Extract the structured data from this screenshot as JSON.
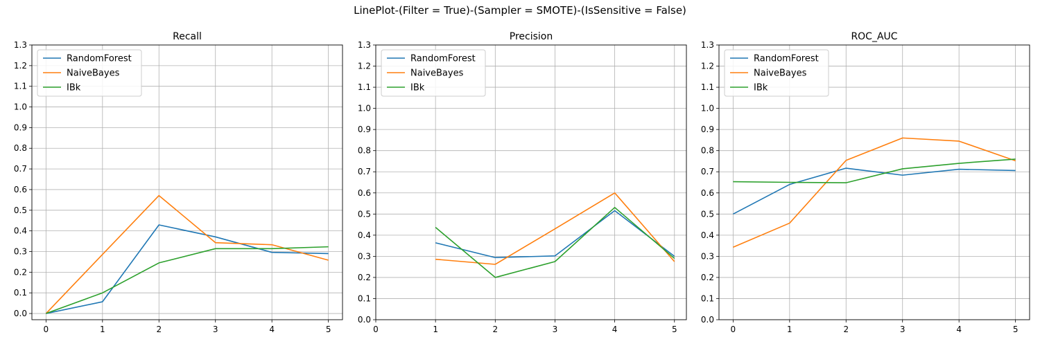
{
  "figure_title": "LinePlot-(Filter = True)-(Sampler = SMOTE)-(IsSensitive = False)",
  "colors": {
    "RandomForest": "#1f77b4",
    "NaiveBayes": "#ff7f0e",
    "IBk": "#2ca02c",
    "grid": "#b0b0b0"
  },
  "chart_data": [
    {
      "type": "line",
      "title": "Recall",
      "x": [
        0,
        1,
        2,
        3,
        4,
        5
      ],
      "xticks": [
        0,
        1,
        2,
        3,
        4,
        5
      ],
      "ylim": [
        -0.03,
        1.3
      ],
      "yticks": [
        0.0,
        0.1,
        0.2,
        0.3,
        0.4,
        0.5,
        0.6,
        0.7,
        0.8,
        0.9,
        1.0,
        1.1,
        1.2,
        1.3
      ],
      "xlim": [
        -0.25,
        5.25
      ],
      "grid": true,
      "legend": "upper-left",
      "series": [
        {
          "name": "RandomForest",
          "values": [
            0.0,
            0.057,
            0.429,
            0.371,
            0.296,
            0.29
          ]
        },
        {
          "name": "NaiveBayes",
          "values": [
            0.0,
            0.286,
            0.571,
            0.343,
            0.333,
            0.258
          ]
        },
        {
          "name": "IBk",
          "values": [
            0.0,
            0.1,
            0.245,
            0.314,
            0.314,
            0.323
          ]
        }
      ]
    },
    {
      "type": "line",
      "title": "Precision",
      "x": [
        1,
        2,
        3,
        4,
        5
      ],
      "xticks": [
        0,
        1,
        2,
        3,
        4,
        5
      ],
      "ylim": [
        0.0,
        1.3
      ],
      "yticks": [
        0.0,
        0.1,
        0.2,
        0.3,
        0.4,
        0.5,
        0.6,
        0.7,
        0.8,
        0.9,
        1.0,
        1.1,
        1.2,
        1.3
      ],
      "xlim": [
        0,
        5.2
      ],
      "grid": true,
      "legend": "upper-left",
      "series": [
        {
          "name": "RandomForest",
          "values": [
            0.364,
            0.294,
            0.302,
            0.516,
            0.3
          ]
        },
        {
          "name": "NaiveBayes",
          "values": [
            0.286,
            0.262,
            0.43,
            0.6,
            0.275
          ]
        },
        {
          "name": "IBk",
          "values": [
            0.437,
            0.2,
            0.275,
            0.531,
            0.29
          ]
        }
      ]
    },
    {
      "type": "line",
      "title": "ROC_AUC",
      "x": [
        0,
        1,
        2,
        3,
        4,
        5
      ],
      "xticks": [
        0,
        1,
        2,
        3,
        4,
        5
      ],
      "ylim": [
        0.0,
        1.3
      ],
      "yticks": [
        0.0,
        0.1,
        0.2,
        0.3,
        0.4,
        0.5,
        0.6,
        0.7,
        0.8,
        0.9,
        1.0,
        1.1,
        1.2,
        1.3
      ],
      "xlim": [
        -0.25,
        5.25
      ],
      "grid": true,
      "legend": "upper-left",
      "series": [
        {
          "name": "RandomForest",
          "values": [
            0.5,
            0.64,
            0.717,
            0.684,
            0.712,
            0.706
          ]
        },
        {
          "name": "NaiveBayes",
          "values": [
            0.343,
            0.457,
            0.754,
            0.86,
            0.845,
            0.752
          ]
        },
        {
          "name": "IBk",
          "values": [
            0.653,
            0.65,
            0.648,
            0.714,
            0.74,
            0.76
          ]
        }
      ]
    }
  ]
}
